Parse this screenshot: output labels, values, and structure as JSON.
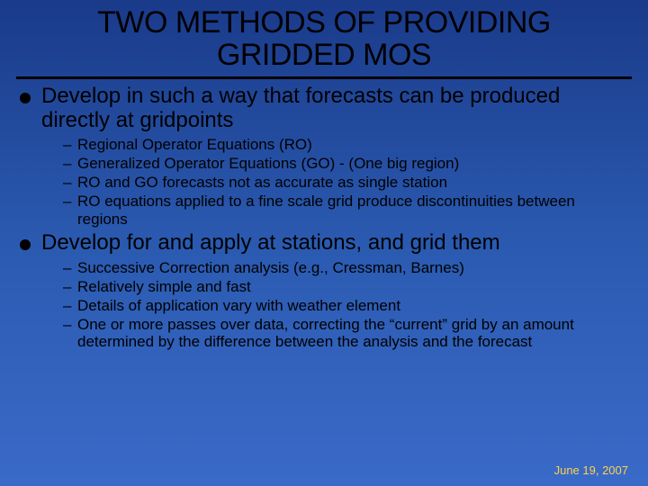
{
  "title": {
    "line1": "TWO METHODS OF PROVIDING",
    "line2": "GRIDDED MOS",
    "fontsize": 34,
    "color": "#000000"
  },
  "bullets": [
    {
      "text": "Develop in such a way that forecasts can be produced directly at gridpoints",
      "fontsize": 24,
      "subs": [
        "Regional Operator Equations (RO)",
        "Generalized Operator Equations (GO) - (One big region)",
        "RO and GO forecasts not as accurate as single station",
        "RO equations applied to a fine scale grid produce discontinuities between regions"
      ],
      "sub_fontsize": 17
    },
    {
      "text": "Develop for and apply at stations, and grid them",
      "fontsize": 24,
      "subs": [
        "Successive Correction analysis (e.g., Cressman, Barnes)",
        "Relatively simple and fast",
        "Details of application vary with weather element",
        "One or more passes over data, correcting the “current” grid by an amount determined by the difference between the analysis and the forecast"
      ],
      "sub_fontsize": 17
    }
  ],
  "footer": {
    "date": "June 19, 2007",
    "fontsize": 13,
    "color": "#ffd24a"
  },
  "background": {
    "top": "#1a3a8a",
    "bottom": "#3a6ac8"
  }
}
